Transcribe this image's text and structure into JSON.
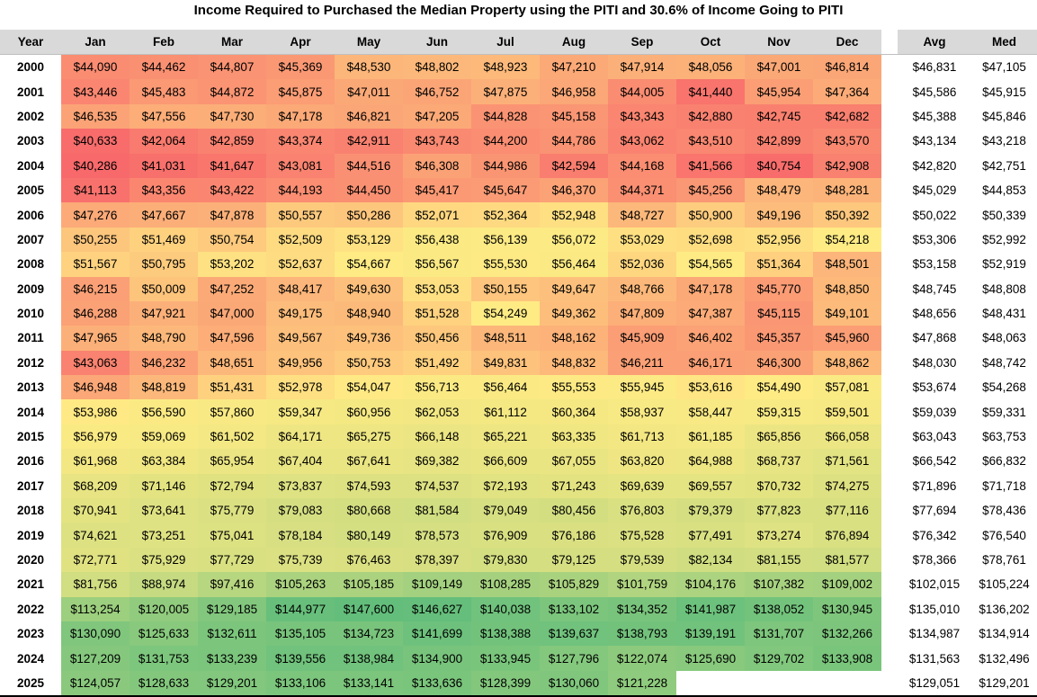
{
  "chart_data": {
    "type": "table",
    "title": "Income Required to Purchased the Median Property using the PITI and 30.6% of Income Going to PITI",
    "columns": [
      "Year",
      "Jan",
      "Feb",
      "Mar",
      "Apr",
      "May",
      "Jun",
      "Jul",
      "Aug",
      "Sep",
      "Oct",
      "Nov",
      "Dec",
      "Avg",
      "Med"
    ],
    "rows": [
      {
        "year": "2000",
        "values": [
          "$44,090",
          "$44,462",
          "$44,807",
          "$45,369",
          "$48,530",
          "$48,802",
          "$48,923",
          "$47,210",
          "$47,914",
          "$48,056",
          "$47,001",
          "$46,814"
        ],
        "avg": "$46,831",
        "med": "$47,105"
      },
      {
        "year": "2001",
        "values": [
          "$43,446",
          "$45,483",
          "$44,872",
          "$45,875",
          "$47,011",
          "$46,752",
          "$47,875",
          "$46,958",
          "$44,005",
          "$41,440",
          "$45,954",
          "$47,364"
        ],
        "avg": "$45,586",
        "med": "$45,915"
      },
      {
        "year": "2002",
        "values": [
          "$46,535",
          "$47,556",
          "$47,730",
          "$47,178",
          "$46,821",
          "$47,205",
          "$44,828",
          "$45,158",
          "$43,343",
          "$42,880",
          "$42,745",
          "$42,682"
        ],
        "avg": "$45,388",
        "med": "$45,846"
      },
      {
        "year": "2003",
        "values": [
          "$40,633",
          "$42,064",
          "$42,859",
          "$43,374",
          "$42,911",
          "$43,743",
          "$44,200",
          "$44,786",
          "$43,062",
          "$43,510",
          "$42,899",
          "$43,570"
        ],
        "avg": "$43,134",
        "med": "$43,218"
      },
      {
        "year": "2004",
        "values": [
          "$40,286",
          "$41,031",
          "$41,647",
          "$43,081",
          "$44,516",
          "$46,308",
          "$44,986",
          "$42,594",
          "$44,168",
          "$41,566",
          "$40,754",
          "$42,908"
        ],
        "avg": "$42,820",
        "med": "$42,751"
      },
      {
        "year": "2005",
        "values": [
          "$41,113",
          "$43,356",
          "$43,422",
          "$44,193",
          "$44,450",
          "$45,417",
          "$45,647",
          "$46,370",
          "$44,371",
          "$45,256",
          "$48,479",
          "$48,281"
        ],
        "avg": "$45,029",
        "med": "$44,853"
      },
      {
        "year": "2006",
        "values": [
          "$47,276",
          "$47,667",
          "$47,878",
          "$50,557",
          "$50,286",
          "$52,071",
          "$52,364",
          "$52,948",
          "$48,727",
          "$50,900",
          "$49,196",
          "$50,392"
        ],
        "avg": "$50,022",
        "med": "$50,339"
      },
      {
        "year": "2007",
        "values": [
          "$50,255",
          "$51,469",
          "$50,754",
          "$52,509",
          "$53,129",
          "$56,438",
          "$56,139",
          "$56,072",
          "$53,029",
          "$52,698",
          "$52,956",
          "$54,218"
        ],
        "avg": "$53,306",
        "med": "$52,992"
      },
      {
        "year": "2008",
        "values": [
          "$51,567",
          "$50,795",
          "$53,202",
          "$52,637",
          "$54,667",
          "$56,567",
          "$55,530",
          "$56,464",
          "$52,036",
          "$54,565",
          "$51,364",
          "$48,501"
        ],
        "avg": "$53,158",
        "med": "$52,919"
      },
      {
        "year": "2009",
        "values": [
          "$46,215",
          "$50,009",
          "$47,252",
          "$48,417",
          "$49,630",
          "$53,053",
          "$50,155",
          "$49,647",
          "$48,766",
          "$47,178",
          "$45,770",
          "$48,850"
        ],
        "avg": "$48,745",
        "med": "$48,808"
      },
      {
        "year": "2010",
        "values": [
          "$46,288",
          "$47,921",
          "$47,000",
          "$49,175",
          "$48,940",
          "$51,528",
          "$54,249",
          "$49,362",
          "$47,809",
          "$47,387",
          "$45,115",
          "$49,101"
        ],
        "avg": "$48,656",
        "med": "$48,431"
      },
      {
        "year": "2011",
        "values": [
          "$47,965",
          "$48,790",
          "$47,596",
          "$49,567",
          "$49,736",
          "$50,456",
          "$48,511",
          "$48,162",
          "$45,909",
          "$46,402",
          "$45,357",
          "$45,960"
        ],
        "avg": "$47,868",
        "med": "$48,063"
      },
      {
        "year": "2012",
        "values": [
          "$43,063",
          "$46,232",
          "$48,651",
          "$49,956",
          "$50,753",
          "$51,492",
          "$49,831",
          "$48,832",
          "$46,211",
          "$46,171",
          "$46,300",
          "$48,862"
        ],
        "avg": "$48,030",
        "med": "$48,742"
      },
      {
        "year": "2013",
        "values": [
          "$46,948",
          "$48,819",
          "$51,431",
          "$52,978",
          "$54,047",
          "$56,713",
          "$56,464",
          "$55,553",
          "$55,945",
          "$53,616",
          "$54,490",
          "$57,081"
        ],
        "avg": "$53,674",
        "med": "$54,268"
      },
      {
        "year": "2014",
        "values": [
          "$53,986",
          "$56,590",
          "$57,860",
          "$59,347",
          "$60,956",
          "$62,053",
          "$61,112",
          "$60,364",
          "$58,937",
          "$58,447",
          "$59,315",
          "$59,501"
        ],
        "avg": "$59,039",
        "med": "$59,331"
      },
      {
        "year": "2015",
        "values": [
          "$56,979",
          "$59,069",
          "$61,502",
          "$64,171",
          "$65,275",
          "$66,148",
          "$65,221",
          "$63,335",
          "$61,713",
          "$61,185",
          "$65,856",
          "$66,058"
        ],
        "avg": "$63,043",
        "med": "$63,753"
      },
      {
        "year": "2016",
        "values": [
          "$61,968",
          "$63,384",
          "$65,954",
          "$67,404",
          "$67,641",
          "$69,382",
          "$66,609",
          "$67,055",
          "$63,820",
          "$64,988",
          "$68,737",
          "$71,561"
        ],
        "avg": "$66,542",
        "med": "$66,832"
      },
      {
        "year": "2017",
        "values": [
          "$68,209",
          "$71,146",
          "$72,794",
          "$73,837",
          "$74,593",
          "$74,537",
          "$72,193",
          "$71,243",
          "$69,639",
          "$69,557",
          "$70,732",
          "$74,275"
        ],
        "avg": "$71,896",
        "med": "$71,718"
      },
      {
        "year": "2018",
        "values": [
          "$70,941",
          "$73,641",
          "$75,779",
          "$79,083",
          "$80,668",
          "$81,584",
          "$79,049",
          "$80,456",
          "$76,803",
          "$79,379",
          "$77,823",
          "$77,116"
        ],
        "avg": "$77,694",
        "med": "$78,436"
      },
      {
        "year": "2019",
        "values": [
          "$74,621",
          "$73,251",
          "$75,041",
          "$78,184",
          "$80,149",
          "$78,573",
          "$76,909",
          "$76,186",
          "$75,528",
          "$77,491",
          "$73,274",
          "$76,894"
        ],
        "avg": "$76,342",
        "med": "$76,540"
      },
      {
        "year": "2020",
        "values": [
          "$72,771",
          "$75,929",
          "$77,729",
          "$75,739",
          "$76,463",
          "$78,397",
          "$79,830",
          "$79,125",
          "$79,539",
          "$82,134",
          "$81,155",
          "$81,577"
        ],
        "avg": "$78,366",
        "med": "$78,761"
      },
      {
        "year": "2021",
        "values": [
          "$81,756",
          "$88,974",
          "$97,416",
          "$105,263",
          "$105,185",
          "$109,149",
          "$108,285",
          "$105,829",
          "$101,759",
          "$104,176",
          "$107,382",
          "$109,002"
        ],
        "avg": "$102,015",
        "med": "$105,224"
      },
      {
        "year": "2022",
        "values": [
          "$113,254",
          "$120,005",
          "$129,185",
          "$144,977",
          "$147,600",
          "$146,627",
          "$140,038",
          "$133,102",
          "$134,352",
          "$141,987",
          "$138,052",
          "$130,945"
        ],
        "avg": "$135,010",
        "med": "$136,202"
      },
      {
        "year": "2023",
        "values": [
          "$130,090",
          "$125,633",
          "$132,611",
          "$135,105",
          "$134,723",
          "$141,699",
          "$138,388",
          "$139,637",
          "$138,793",
          "$139,191",
          "$131,707",
          "$132,266"
        ],
        "avg": "$134,987",
        "med": "$134,914"
      },
      {
        "year": "2024",
        "values": [
          "$127,209",
          "$131,753",
          "$133,239",
          "$139,556",
          "$138,984",
          "$134,900",
          "$133,945",
          "$127,796",
          "$122,074",
          "$125,690",
          "$129,702",
          "$133,908"
        ],
        "avg": "$131,563",
        "med": "$132,496"
      },
      {
        "year": "2025",
        "values": [
          "$124,057",
          "$128,633",
          "$129,201",
          "$133,106",
          "$133,141",
          "$133,636",
          "$128,399",
          "$130,060",
          "$121,228",
          "",
          "",
          ""
        ],
        "avg": "$129,051",
        "med": "$129,201"
      }
    ],
    "color_scale": {
      "low": "#f8696b",
      "mid": "#ffeb84",
      "high": "#63be7b"
    }
  }
}
